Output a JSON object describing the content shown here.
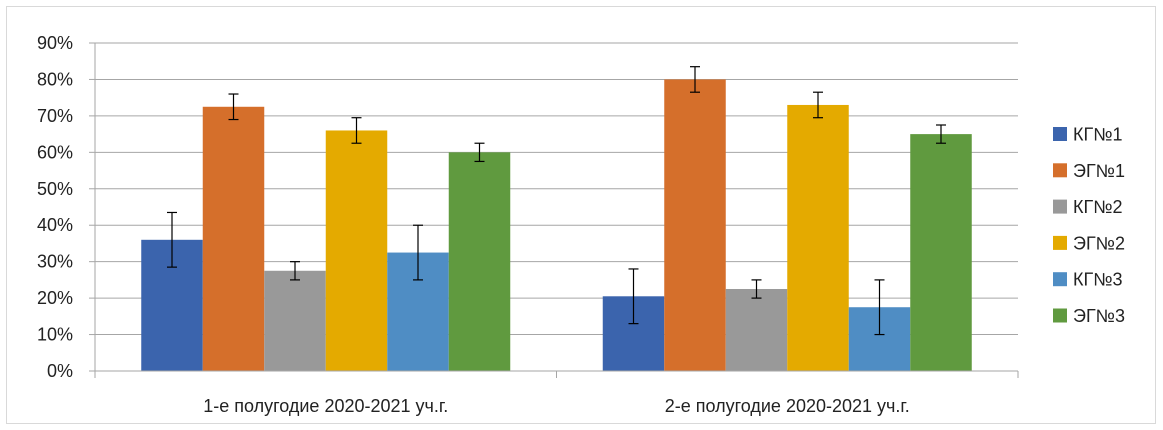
{
  "chart_data": {
    "type": "bar",
    "categories": [
      "1-е полугодие 2020-2021 уч.г.",
      "2-е полугодие 2020-2021 уч.г."
    ],
    "series": [
      {
        "name": "КГ№1",
        "color": "#3b64ad",
        "values": [
          36,
          20.5
        ],
        "error": [
          7.5,
          7.5
        ]
      },
      {
        "name": "ЭГ№1",
        "color": "#d56f2b",
        "values": [
          72.5,
          80
        ],
        "error": [
          3.5,
          3.5
        ]
      },
      {
        "name": "КГ№2",
        "color": "#999999",
        "values": [
          27.5,
          22.5
        ],
        "error": [
          2.5,
          2.5
        ]
      },
      {
        "name": "ЭГ№2",
        "color": "#e4aa00",
        "values": [
          66,
          73
        ],
        "error": [
          3.5,
          3.5
        ]
      },
      {
        "name": "КГ№3",
        "color": "#4f8dc4",
        "values": [
          32.5,
          17.5
        ],
        "error": [
          7.5,
          7.5
        ]
      },
      {
        "name": "ЭГ№3",
        "color": "#609a3f",
        "values": [
          60,
          65
        ],
        "error": [
          2.5,
          2.5
        ]
      }
    ],
    "yticks": [
      "0%",
      "10%",
      "20%",
      "30%",
      "40%",
      "50%",
      "60%",
      "70%",
      "80%",
      "90%"
    ],
    "ylim": [
      0,
      90
    ],
    "grid": true,
    "legend": "right"
  }
}
